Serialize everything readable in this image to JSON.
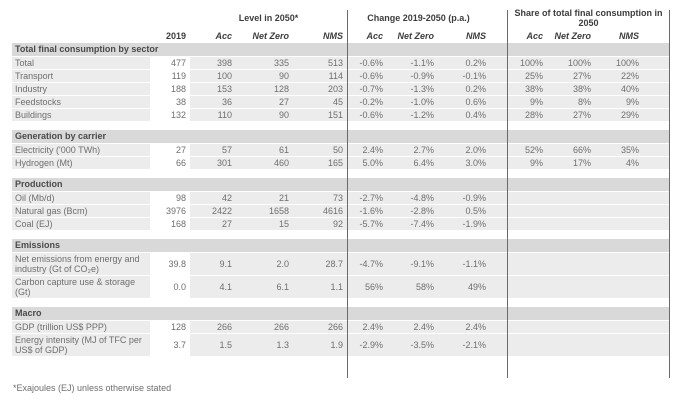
{
  "header": {
    "col_2019": "2019",
    "groups": [
      {
        "label": "Level in 2050*",
        "cols": [
          "Acc",
          "Net Zero",
          "NMS"
        ]
      },
      {
        "label": "Change 2019-2050 (p.a.)",
        "cols": [
          "Acc",
          "Net Zero",
          "NMS"
        ]
      },
      {
        "label": "Share of total final consumption in 2050",
        "cols": [
          "Acc",
          "Net Zero",
          "NMS"
        ]
      }
    ]
  },
  "sections": [
    {
      "title": "Total final consumption by sector",
      "rows": [
        {
          "label": "Total",
          "y2019": "477",
          "level": [
            "398",
            "335",
            "513"
          ],
          "change": [
            "-0.6%",
            "-1.1%",
            "0.2%"
          ],
          "share": [
            "100%",
            "100%",
            "100%"
          ]
        },
        {
          "label": "Transport",
          "y2019": "119",
          "level": [
            "100",
            "90",
            "114"
          ],
          "change": [
            "-0.6%",
            "-0.9%",
            "-0.1%"
          ],
          "share": [
            "25%",
            "27%",
            "22%"
          ]
        },
        {
          "label": "Industry",
          "y2019": "188",
          "level": [
            "153",
            "128",
            "203"
          ],
          "change": [
            "-0.7%",
            "-1.3%",
            "0.2%"
          ],
          "share": [
            "38%",
            "38%",
            "40%"
          ]
        },
        {
          "label": "Feedstocks",
          "y2019": "38",
          "level": [
            "36",
            "27",
            "45"
          ],
          "change": [
            "-0.2%",
            "-1.0%",
            "0.6%"
          ],
          "share": [
            "9%",
            "8%",
            "9%"
          ]
        },
        {
          "label": "Buildings",
          "y2019": "132",
          "level": [
            "110",
            "90",
            "151"
          ],
          "change": [
            "-0.6%",
            "-1.2%",
            "0.4%"
          ],
          "share": [
            "28%",
            "27%",
            "29%"
          ]
        }
      ]
    },
    {
      "title": "Generation by carrier",
      "rows": [
        {
          "label": "Electricity ('000 TWh)",
          "y2019": "27",
          "level": [
            "57",
            "61",
            "50"
          ],
          "change": [
            "2.4%",
            "2.7%",
            "2.0%"
          ],
          "share": [
            "52%",
            "66%",
            "35%"
          ]
        },
        {
          "label": "Hydrogen (Mt)",
          "y2019": "66",
          "level": [
            "301",
            "460",
            "165"
          ],
          "change": [
            "5.0%",
            "6.4%",
            "3.0%"
          ],
          "share": [
            "9%",
            "17%",
            "4%"
          ]
        }
      ]
    },
    {
      "title": "Production",
      "rows": [
        {
          "label": "Oil (Mb/d)",
          "y2019": "98",
          "level": [
            "42",
            "21",
            "73"
          ],
          "change": [
            "-2.7%",
            "-4.8%",
            "-0.9%"
          ],
          "share": [
            "",
            "",
            ""
          ]
        },
        {
          "label": "Natural gas (Bcm)",
          "y2019": "3976",
          "level": [
            "2422",
            "1658",
            "4616"
          ],
          "change": [
            "-1.6%",
            "-2.8%",
            "0.5%"
          ],
          "share": [
            "",
            "",
            ""
          ]
        },
        {
          "label": "Coal (EJ)",
          "y2019": "168",
          "level": [
            "27",
            "15",
            "92"
          ],
          "change": [
            "-5.7%",
            "-7.4%",
            "-1.9%"
          ],
          "share": [
            "",
            "",
            ""
          ]
        }
      ]
    },
    {
      "title": "Emissions",
      "rows": [
        {
          "label": "Net emissions from energy and industry (Gt of CO₂e)",
          "y2019": "39.8",
          "level": [
            "9.1",
            "2.0",
            "28.7"
          ],
          "change": [
            "-4.7%",
            "-9.1%",
            "-1.1%"
          ],
          "share": [
            "",
            "",
            ""
          ]
        },
        {
          "label": "Carbon capture use & storage (Gt)",
          "y2019": "0.0",
          "level": [
            "4.1",
            "6.1",
            "1.1"
          ],
          "change": [
            "56%",
            "58%",
            "49%"
          ],
          "share": [
            "",
            "",
            ""
          ]
        }
      ]
    },
    {
      "title": "Macro",
      "rows": [
        {
          "label": "GDP (trillion US$ PPP)",
          "y2019": "128",
          "level": [
            "266",
            "266",
            "266"
          ],
          "change": [
            "2.4%",
            "2.4%",
            "2.4%"
          ],
          "share": [
            "",
            "",
            ""
          ]
        },
        {
          "label": "Energy intensity (MJ of TFC per US$ of GDP)",
          "y2019": "3.7",
          "level": [
            "1.5",
            "1.3",
            "1.9"
          ],
          "change": [
            "-2.9%",
            "-3.5%",
            "-2.1%"
          ],
          "share": [
            "",
            "",
            ""
          ]
        }
      ]
    }
  ],
  "footnote": "*Exajoules (EJ) unless otherwise stated",
  "colors": {
    "section_header_bg": "#d9d9d9",
    "data_row_bg": "#ececec",
    "highlight_column_bg": "#ffffff",
    "divider_line": "#6a6a6a",
    "body_text": "#6e6e6e",
    "header_text": "#3d3d3d"
  }
}
